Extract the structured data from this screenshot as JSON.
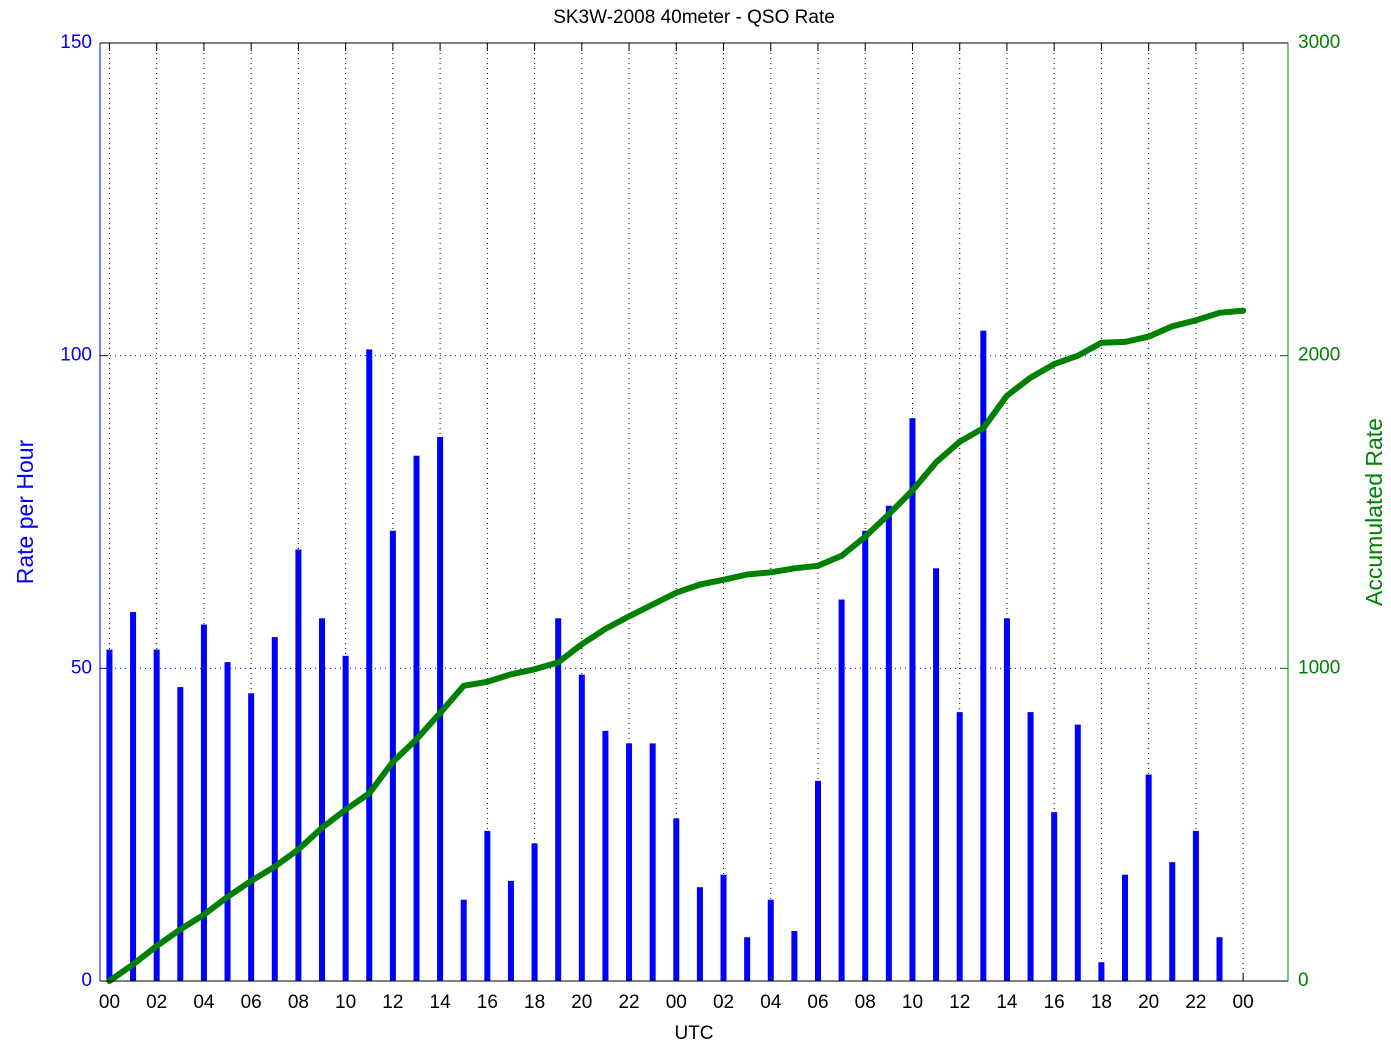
{
  "chart_data": {
    "type": "bar-line",
    "title": "SK3W-2008 40meter -  QSO Rate",
    "xlabel": "UTC",
    "ylabel": "Rate per Hour",
    "y2label": "Accumulated Rate",
    "xlim": [
      -0.4,
      49.9
    ],
    "xticks": [
      {
        "value": 0,
        "label": "00"
      },
      {
        "value": 2,
        "label": "02"
      },
      {
        "value": 4,
        "label": "04"
      },
      {
        "value": 6,
        "label": "06"
      },
      {
        "value": 8,
        "label": "08"
      },
      {
        "value": 10,
        "label": "10"
      },
      {
        "value": 12,
        "label": "12"
      },
      {
        "value": 14,
        "label": "14"
      },
      {
        "value": 16,
        "label": "16"
      },
      {
        "value": 18,
        "label": "18"
      },
      {
        "value": 20,
        "label": "20"
      },
      {
        "value": 22,
        "label": "22"
      },
      {
        "value": 24,
        "label": "00"
      },
      {
        "value": 26,
        "label": "02"
      },
      {
        "value": 28,
        "label": "04"
      },
      {
        "value": 30,
        "label": "06"
      },
      {
        "value": 32,
        "label": "08"
      },
      {
        "value": 34,
        "label": "10"
      },
      {
        "value": 36,
        "label": "12"
      },
      {
        "value": 38,
        "label": "14"
      },
      {
        "value": 40,
        "label": "16"
      },
      {
        "value": 42,
        "label": "18"
      },
      {
        "value": 44,
        "label": "20"
      },
      {
        "value": 46,
        "label": "22"
      },
      {
        "value": 48,
        "label": "00"
      }
    ],
    "ylim": [
      0,
      150
    ],
    "yticks": [
      0,
      50,
      100,
      150
    ],
    "y2lim": [
      0,
      3000
    ],
    "y2ticks": [
      0,
      1000,
      2000,
      3000
    ],
    "grid": true,
    "series": [
      {
        "type": "bar",
        "color": "#0000ff",
        "x": [
          0,
          1,
          2,
          3,
          4,
          5,
          6,
          7,
          8,
          9,
          10,
          11,
          12,
          13,
          14,
          15,
          16,
          17,
          18,
          19,
          20,
          21,
          22,
          23,
          24,
          25,
          26,
          27,
          28,
          29,
          30,
          31,
          32,
          33,
          34,
          35,
          36,
          37,
          38,
          39,
          40,
          41,
          42,
          43,
          44,
          45,
          46,
          47
        ],
        "values": [
          53,
          59,
          53,
          47,
          57,
          51,
          46,
          55,
          69,
          58,
          52,
          101,
          72,
          84,
          87,
          13,
          24,
          16,
          22,
          58,
          49,
          40,
          38,
          38,
          26,
          15,
          17,
          7,
          13,
          8,
          32,
          61,
          72,
          76,
          90,
          66,
          43,
          104,
          58,
          43,
          27,
          41,
          3,
          17,
          33,
          19,
          24,
          7
        ]
      },
      {
        "type": "line",
        "color": "#008000",
        "axis": "y2",
        "x": [
          0,
          1,
          2,
          3,
          4,
          5,
          6,
          7,
          8,
          9,
          10,
          11,
          12,
          13,
          14,
          15,
          16,
          17,
          18,
          19,
          20,
          21,
          22,
          23,
          24,
          25,
          26,
          27,
          28,
          29,
          30,
          31,
          32,
          33,
          34,
          35,
          36,
          37,
          38,
          39,
          40,
          41,
          42,
          43,
          44,
          45,
          46,
          47,
          48
        ],
        "values": [
          0,
          53,
          112,
          165,
          212,
          269,
          320,
          366,
          421,
          490,
          548,
          600,
          701,
          773,
          857,
          944,
          957,
          981,
          997,
          1019,
          1077,
          1126,
          1166,
          1204,
          1242,
          1268,
          1283,
          1300,
          1307,
          1320,
          1328,
          1360,
          1421,
          1493,
          1569,
          1659,
          1725,
          1768,
          1872,
          1930,
          1973,
          2000,
          2041,
          2044,
          2061,
          2094,
          2113,
          2137,
          2144
        ]
      }
    ]
  }
}
